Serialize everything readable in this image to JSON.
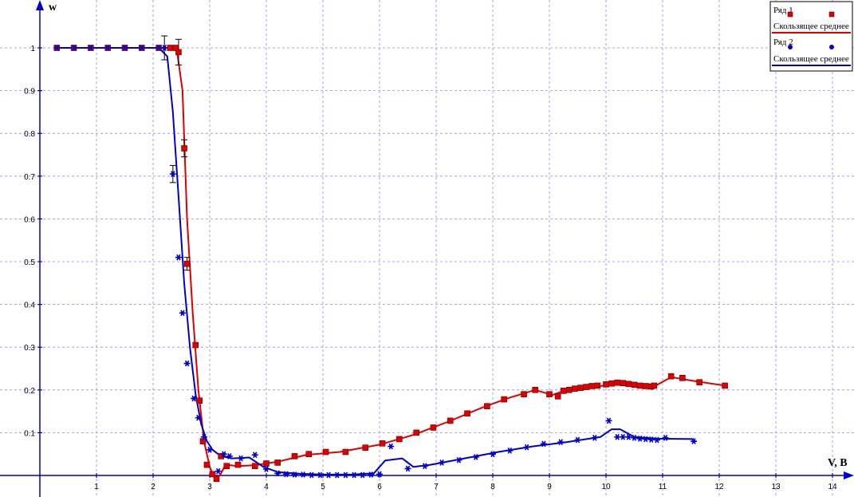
{
  "chart_data": {
    "type": "line",
    "title": "",
    "xlabel": "V, B",
    "ylabel": "w",
    "xlim": [
      -0.4,
      14.5
    ],
    "ylim": [
      -0.015,
      1.1
    ],
    "xticks": [
      "1",
      "2",
      "3",
      "4",
      "5",
      "6",
      "7",
      "8",
      "9",
      "10",
      "11",
      "12",
      "13",
      "14"
    ],
    "yticks": [
      "0.1",
      "0.2",
      "0.3",
      "0.4",
      "0.5",
      "0.6",
      "0.7",
      "0.8",
      "0.9",
      "1"
    ],
    "grid": true,
    "legend": {
      "position": "top-right",
      "entries": [
        {
          "label": "Ряд 1",
          "kind": "markers",
          "color": "#dd0000"
        },
        {
          "label": "Скользящее среднее",
          "kind": "line",
          "color": "#dd0000"
        },
        {
          "label": "Ряд 2",
          "kind": "markers",
          "color": "#0000cc"
        },
        {
          "label": "Скользящее среднее",
          "kind": "line",
          "color": "#0000cc"
        }
      ]
    },
    "series": [
      {
        "name": "Ряд 1",
        "color": "#dd0000",
        "marker": "square",
        "x": [
          0.3,
          0.6,
          0.9,
          1.2,
          1.5,
          1.8,
          2.1,
          2.3,
          2.4,
          2.45,
          2.55,
          2.6,
          2.75,
          2.82,
          2.88,
          2.95,
          3.05,
          3.12,
          3.2,
          3.3,
          3.5,
          3.8,
          4.0,
          4.2,
          4.5,
          4.75,
          5.05,
          5.4,
          5.75,
          6.05,
          6.35,
          6.65,
          6.95,
          7.25,
          7.55,
          7.9,
          8.2,
          8.55,
          8.75,
          9.0,
          9.15,
          9.25,
          9.35,
          9.45,
          9.55,
          9.65,
          9.75,
          9.85,
          10.0,
          10.1,
          10.2,
          10.3,
          10.4,
          10.5,
          10.6,
          10.7,
          10.8,
          10.85,
          11.15,
          11.35,
          11.65,
          12.1
        ],
        "y": [
          1.0,
          1.0,
          1.0,
          1.0,
          1.0,
          1.0,
          1.0,
          1.0,
          1.0,
          0.99,
          0.765,
          0.495,
          0.305,
          0.175,
          0.08,
          0.025,
          0.003,
          -0.008,
          0.045,
          0.022,
          0.025,
          0.022,
          0.028,
          0.03,
          0.045,
          0.05,
          0.055,
          0.055,
          0.065,
          0.075,
          0.085,
          0.1,
          0.112,
          0.128,
          0.145,
          0.162,
          0.178,
          0.19,
          0.2,
          0.19,
          0.185,
          0.198,
          0.2,
          0.203,
          0.205,
          0.207,
          0.209,
          0.21,
          0.213,
          0.215,
          0.217,
          0.216,
          0.214,
          0.212,
          0.21,
          0.209,
          0.208,
          0.21,
          0.232,
          0.228,
          0.218,
          0.21
        ]
      },
      {
        "name": "Ряд 2",
        "color": "#0000cc",
        "marker": "star",
        "x": [
          0.3,
          0.6,
          0.9,
          1.2,
          1.5,
          1.8,
          2.1,
          2.2,
          2.35,
          2.45,
          2.52,
          2.6,
          2.72,
          2.8,
          2.9,
          3.0,
          3.15,
          3.25,
          3.35,
          3.55,
          3.8,
          4.0,
          4.2,
          4.35,
          4.5,
          4.65,
          4.8,
          4.95,
          5.1,
          5.25,
          5.4,
          5.55,
          5.7,
          5.85,
          6.0,
          6.2,
          6.5,
          6.8,
          7.1,
          7.4,
          7.7,
          8.0,
          8.3,
          8.6,
          8.9,
          9.2,
          9.5,
          9.8,
          10.05,
          10.2,
          10.3,
          10.4,
          10.5,
          10.6,
          10.7,
          10.8,
          10.9,
          11.05,
          11.55
        ],
        "y": [
          1.0,
          1.0,
          1.0,
          1.0,
          1.0,
          1.0,
          1.0,
          1.0,
          0.705,
          0.51,
          0.38,
          0.262,
          0.18,
          0.135,
          0.09,
          0.06,
          0.01,
          0.05,
          0.045,
          0.04,
          0.048,
          0.015,
          0.005,
          0.003,
          0.002,
          0.002,
          0.001,
          0.001,
          0.001,
          0.001,
          0.001,
          0.001,
          0.001,
          0.002,
          0.003,
          0.068,
          0.016,
          0.022,
          0.03,
          0.036,
          0.043,
          0.05,
          0.058,
          0.066,
          0.074,
          0.078,
          0.083,
          0.088,
          0.128,
          0.09,
          0.09,
          0.09,
          0.088,
          0.086,
          0.085,
          0.084,
          0.083,
          0.088,
          0.08
        ]
      },
      {
        "name": "Скользящее среднее (Ряд 1)",
        "color": "#dd0000",
        "marker": "none",
        "x": [
          0.3,
          0.6,
          0.9,
          1.2,
          1.5,
          1.8,
          2.1,
          2.3,
          2.42,
          2.52,
          2.6,
          2.7,
          2.8,
          2.9,
          3.0,
          3.08,
          3.18,
          3.28,
          3.5,
          3.8,
          4.2,
          4.7,
          5.3,
          6.0,
          6.6,
          7.2,
          7.8,
          8.3,
          8.75,
          9.05,
          9.3,
          9.6,
          9.9,
          10.2,
          10.5,
          10.85,
          11.15,
          11.5,
          12.1
        ],
        "y": [
          1.0,
          1.0,
          1.0,
          1.0,
          1.0,
          1.0,
          1.0,
          1.0,
          0.995,
          0.9,
          0.6,
          0.38,
          0.2,
          0.08,
          0.02,
          -0.005,
          0.0,
          0.025,
          0.022,
          0.024,
          0.032,
          0.048,
          0.055,
          0.072,
          0.095,
          0.125,
          0.158,
          0.182,
          0.2,
          0.188,
          0.2,
          0.204,
          0.209,
          0.216,
          0.213,
          0.208,
          0.23,
          0.222,
          0.21
        ]
      },
      {
        "name": "Скользящее среднее (Ряд 2)",
        "color": "#0000cc",
        "marker": "none",
        "x": [
          0.3,
          0.6,
          0.9,
          1.2,
          1.5,
          1.8,
          2.1,
          2.25,
          2.35,
          2.45,
          2.55,
          2.65,
          2.75,
          2.85,
          2.95,
          3.05,
          3.2,
          3.4,
          3.7,
          3.95,
          4.2,
          4.6,
          5.0,
          5.5,
          5.9,
          6.1,
          6.4,
          6.6,
          6.9,
          7.5,
          8.1,
          8.7,
          9.3,
          9.9,
          10.1,
          10.25,
          10.5,
          10.9,
          11.55
        ],
        "y": [
          1.0,
          1.0,
          1.0,
          1.0,
          1.0,
          1.0,
          1.0,
          0.98,
          0.85,
          0.65,
          0.45,
          0.3,
          0.19,
          0.12,
          0.08,
          0.06,
          0.045,
          0.04,
          0.042,
          0.02,
          0.008,
          0.004,
          0.002,
          0.002,
          0.005,
          0.035,
          0.04,
          0.02,
          0.025,
          0.04,
          0.055,
          0.068,
          0.078,
          0.09,
          0.108,
          0.108,
          0.09,
          0.086,
          0.085
        ]
      }
    ],
    "error_bars": [
      {
        "series": "Ряд 1",
        "x": 2.45,
        "y": 0.99,
        "err": 0.03
      },
      {
        "series": "Ряд 1",
        "x": 2.55,
        "y": 0.765,
        "err": 0.02
      },
      {
        "series": "Ряд 1",
        "x": 2.6,
        "y": 0.495,
        "err": 0.015
      },
      {
        "series": "Ряд 2",
        "x": 2.2,
        "y": 1.0,
        "err": 0.028
      },
      {
        "series": "Ряд 2",
        "x": 2.35,
        "y": 0.705,
        "err": 0.02
      }
    ]
  }
}
